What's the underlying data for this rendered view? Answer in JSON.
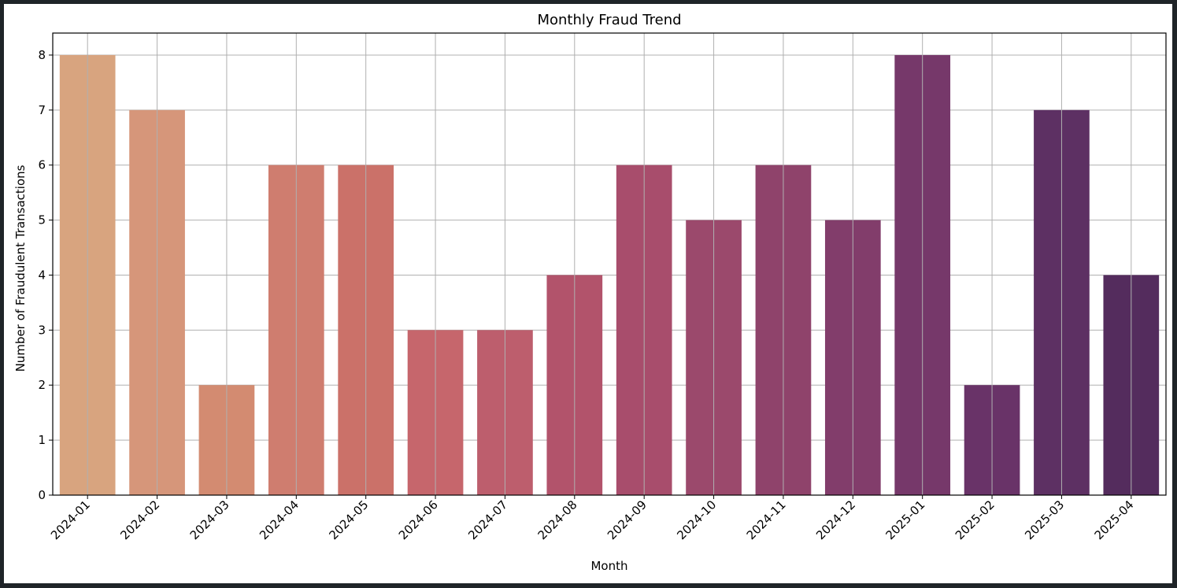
{
  "chart_data": {
    "type": "bar",
    "title": "Monthly Fraud Trend",
    "xlabel": "Month",
    "ylabel": "Number of Fraudulent Transactions",
    "categories": [
      "2024-01",
      "2024-02",
      "2024-03",
      "2024-04",
      "2024-05",
      "2024-06",
      "2024-07",
      "2024-08",
      "2024-09",
      "2024-10",
      "2024-11",
      "2024-12",
      "2025-01",
      "2025-02",
      "2025-03",
      "2025-04"
    ],
    "values": [
      8,
      7,
      2,
      6,
      6,
      3,
      3,
      4,
      6,
      5,
      6,
      5,
      8,
      2,
      7,
      4
    ],
    "ylim": [
      0,
      8.4
    ],
    "yticks": [
      0,
      1,
      2,
      3,
      4,
      5,
      6,
      7,
      8
    ],
    "grid": true,
    "colors": [
      "#d8a47f",
      "#d6967a",
      "#d38b71",
      "#cf7d6f",
      "#cb7169",
      "#c6666c",
      "#bd5e6d",
      "#b2536b",
      "#a84d6c",
      "#9b496c",
      "#8f436b",
      "#823d6b",
      "#76386a",
      "#693368",
      "#5d3063",
      "#542c5d"
    ]
  }
}
